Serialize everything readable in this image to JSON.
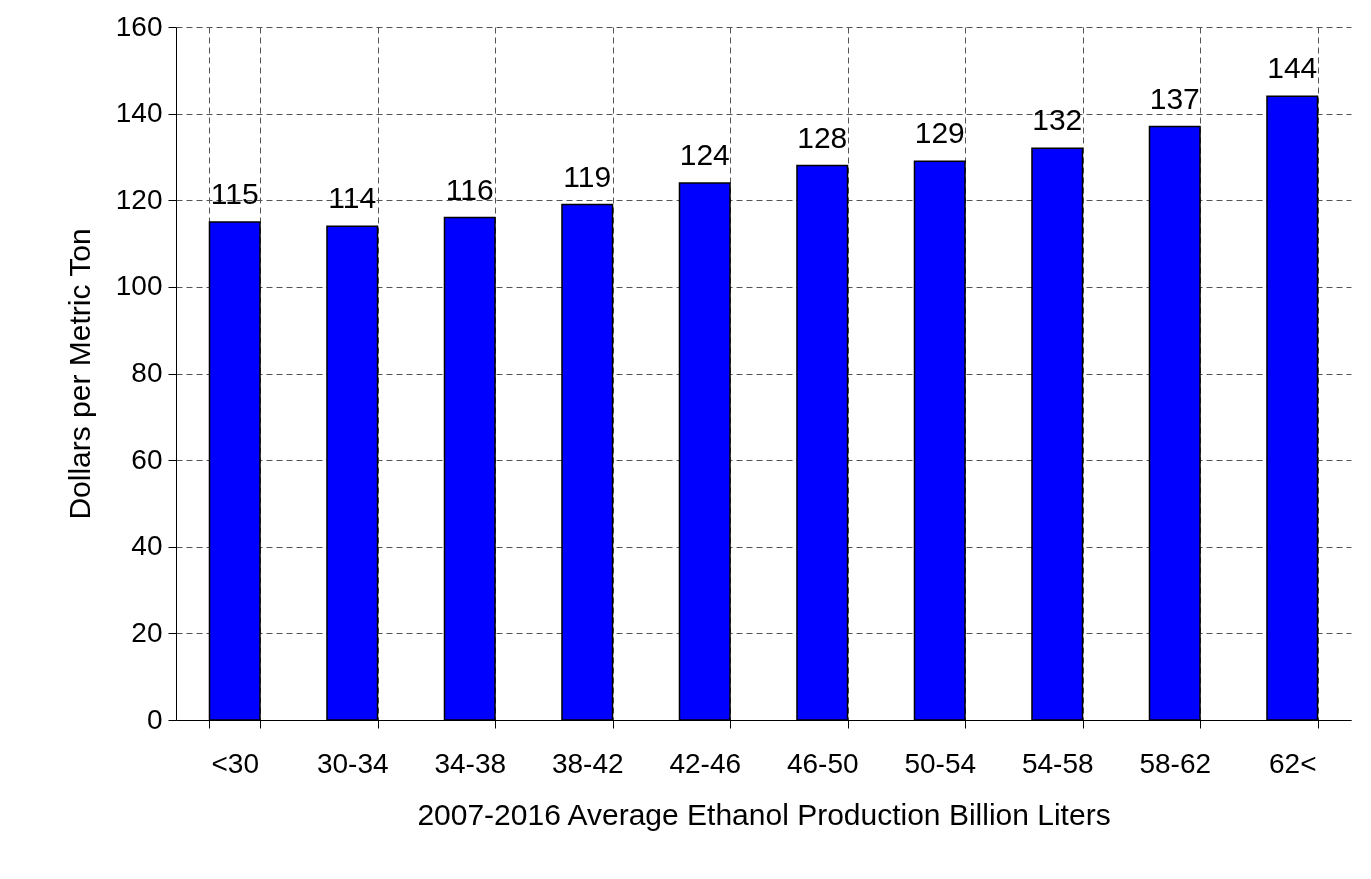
{
  "chart_data": {
    "type": "bar",
    "xlabel": "2007-2016 Average Ethanol Production Billion Liters",
    "ylabel": "Dollars per Metric Ton",
    "categories": [
      "<30",
      "30-34",
      "34-38",
      "38-42",
      "42-46",
      "46-50",
      "50-54",
      "54-58",
      "58-62",
      "62<"
    ],
    "values": [
      115,
      114,
      116,
      119,
      124,
      128,
      129,
      132,
      137,
      144
    ],
    "color": "#0000ff",
    "ylim": [
      0,
      160
    ],
    "yticks": [
      0,
      20,
      40,
      60,
      80,
      100,
      120,
      140,
      160
    ],
    "grid": true,
    "data_labels": true
  }
}
